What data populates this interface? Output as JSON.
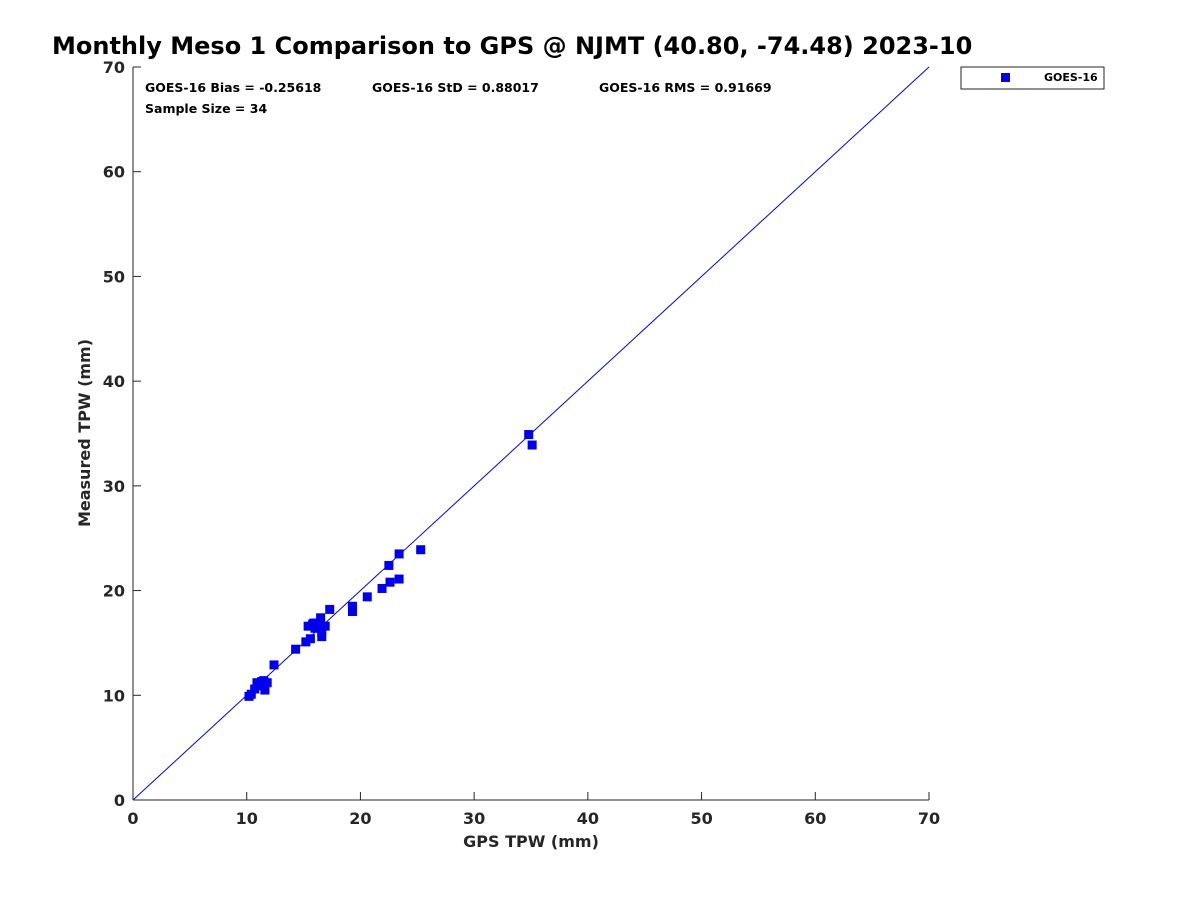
{
  "chart_data": {
    "type": "scatter",
    "title": "Monthly Meso 1 Comparison to GPS @ NJMT (40.80, -74.48) 2023-10",
    "xlabel": "GPS TPW (mm)",
    "ylabel": "Measured TPW (mm)",
    "xlim": [
      0,
      70
    ],
    "ylim": [
      0,
      70
    ],
    "xticks": [
      0,
      10,
      20,
      30,
      40,
      50,
      60,
      70
    ],
    "yticks": [
      0,
      10,
      20,
      30,
      40,
      50,
      60,
      70
    ],
    "grid": false,
    "legend_position": "outside-top-right",
    "reference_line": {
      "from": [
        0,
        0
      ],
      "to": [
        70,
        70
      ],
      "color": "#0000ff"
    },
    "stats": {
      "bias": "GOES-16 Bias = -0.25618",
      "std": "GOES-16 StD = 0.88017",
      "rms": "GOES-16 RMS = 0.91669",
      "sample_size": "Sample Size = 34"
    },
    "series": [
      {
        "name": "GOES-16",
        "color": "#0000ee",
        "marker": "square",
        "points": [
          [
            10.2,
            9.9
          ],
          [
            10.4,
            10.1
          ],
          [
            10.7,
            10.6
          ],
          [
            10.9,
            11.2
          ],
          [
            11.1,
            10.9
          ],
          [
            11.5,
            11.4
          ],
          [
            11.6,
            10.5
          ],
          [
            11.8,
            11.2
          ],
          [
            12.4,
            12.9
          ],
          [
            14.3,
            14.4
          ],
          [
            15.2,
            15.1
          ],
          [
            15.4,
            16.6
          ],
          [
            15.6,
            15.4
          ],
          [
            15.8,
            16.8
          ],
          [
            16.0,
            16.4
          ],
          [
            16.3,
            16.9
          ],
          [
            16.5,
            17.4
          ],
          [
            16.6,
            15.6
          ],
          [
            16.6,
            16.0
          ],
          [
            16.9,
            16.6
          ],
          [
            17.3,
            18.2
          ],
          [
            19.3,
            18.0
          ],
          [
            19.3,
            18.5
          ],
          [
            20.6,
            19.4
          ],
          [
            21.9,
            20.2
          ],
          [
            22.5,
            22.4
          ],
          [
            22.6,
            20.8
          ],
          [
            23.4,
            21.1
          ],
          [
            23.4,
            23.5
          ],
          [
            25.3,
            23.9
          ],
          [
            34.8,
            34.9
          ],
          [
            35.1,
            33.9
          ],
          [
            15.9,
            16.9
          ],
          [
            11.3,
            11.3
          ]
        ]
      }
    ]
  }
}
